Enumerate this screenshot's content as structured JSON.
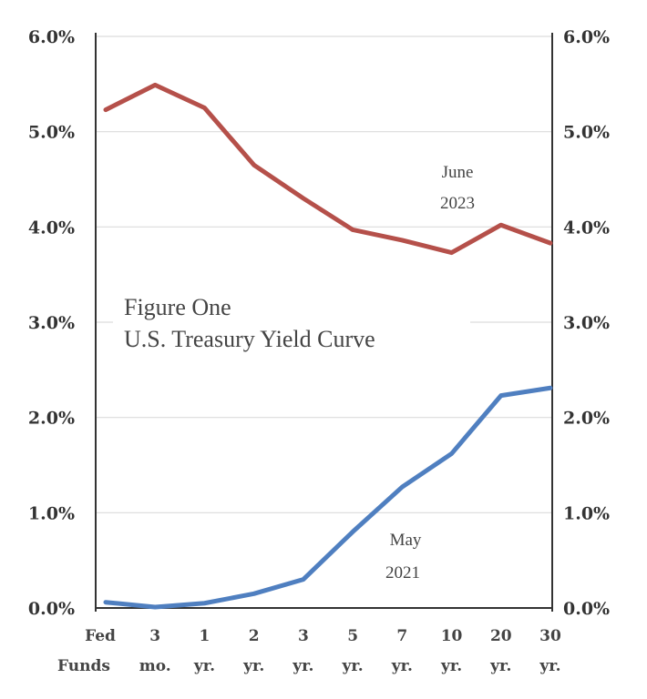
{
  "chart_data": {
    "type": "line",
    "title_line1": "Figure One",
    "title_line2": "U.S. Treasury Yield Curve",
    "categories": [
      {
        "top": "Fed",
        "bottom": "Funds"
      },
      {
        "top": "3",
        "bottom": "mo."
      },
      {
        "top": "1",
        "bottom": "yr."
      },
      {
        "top": "2",
        "bottom": "yr."
      },
      {
        "top": "3",
        "bottom": "yr."
      },
      {
        "top": "5",
        "bottom": "yr."
      },
      {
        "top": "7",
        "bottom": "yr."
      },
      {
        "top": "10",
        "bottom": "yr."
      },
      {
        "top": "20",
        "bottom": "yr."
      },
      {
        "top": "30",
        "bottom": "yr."
      }
    ],
    "y_ticks": [
      "0.0%",
      "1.0%",
      "2.0%",
      "3.0%",
      "4.0%",
      "5.0%",
      "6.0%"
    ],
    "ylim": [
      0,
      6
    ],
    "grid": true,
    "series": [
      {
        "label_line1": "June",
        "label_line2": "2023",
        "color": "#b5504a",
        "values": [
          5.23,
          5.49,
          5.25,
          4.65,
          4.3,
          3.97,
          3.86,
          3.73,
          4.02,
          3.83
        ]
      },
      {
        "label_line1": "May",
        "label_line2": "2021",
        "color": "#4f7fc0",
        "values": [
          0.06,
          0.01,
          0.05,
          0.15,
          0.3,
          0.8,
          1.27,
          1.62,
          2.23,
          2.31
        ]
      }
    ]
  }
}
